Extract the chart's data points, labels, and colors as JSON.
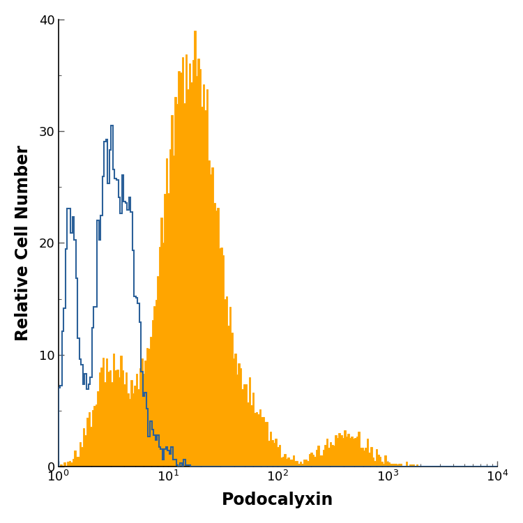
{
  "title": "",
  "xlabel": "Podocalyxin",
  "ylabel": "Relative Cell Number",
  "xlim_log": [
    1,
    10000
  ],
  "ylim": [
    0,
    40
  ],
  "yticks": [
    0,
    10,
    20,
    30,
    40
  ],
  "background_color": "#ffffff",
  "orange_color": "#FFA500",
  "blue_color": "#2B6099",
  "figsize": [
    7.5,
    7.5
  ],
  "dpi": 100,
  "n_bins": 250
}
